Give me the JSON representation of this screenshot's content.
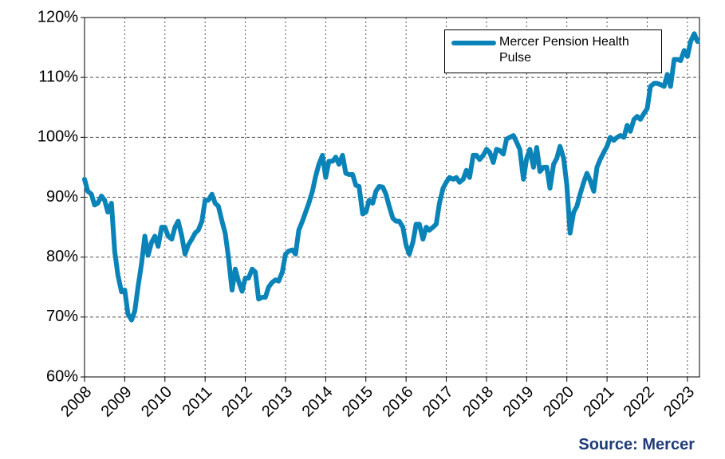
{
  "chart_data": {
    "type": "line",
    "source": "Source: Mercer",
    "xlim": [
      2008,
      2023.3
    ],
    "xticks": [
      2008,
      2009,
      2010,
      2011,
      2012,
      2013,
      2014,
      2015,
      2016,
      2017,
      2018,
      2019,
      2020,
      2021,
      2022,
      2023
    ],
    "ylim": [
      60,
      120
    ],
    "yticks": [
      {
        "value": 60,
        "label": "60%"
      },
      {
        "value": 70,
        "label": "70%"
      },
      {
        "value": 80,
        "label": "80%"
      },
      {
        "value": 90,
        "label": "90%"
      },
      {
        "value": 100,
        "label": "100%"
      },
      {
        "value": 110,
        "label": "110%"
      },
      {
        "value": 120,
        "label": "120%"
      }
    ],
    "grid": true,
    "legend": "upper right",
    "x": [
      2008.0,
      2008.08,
      2008.17,
      2008.25,
      2008.33,
      2008.42,
      2008.5,
      2008.58,
      2008.67,
      2008.75,
      2008.83,
      2008.92,
      2009.0,
      2009.08,
      2009.17,
      2009.25,
      2009.33,
      2009.42,
      2009.5,
      2009.58,
      2009.67,
      2009.75,
      2009.83,
      2009.92,
      2010.0,
      2010.08,
      2010.17,
      2010.25,
      2010.33,
      2010.42,
      2010.5,
      2010.58,
      2010.67,
      2010.75,
      2010.83,
      2010.92,
      2011.0,
      2011.08,
      2011.17,
      2011.25,
      2011.33,
      2011.42,
      2011.5,
      2011.58,
      2011.67,
      2011.75,
      2011.83,
      2011.92,
      2012.0,
      2012.08,
      2012.17,
      2012.25,
      2012.33,
      2012.42,
      2012.5,
      2012.58,
      2012.67,
      2012.75,
      2012.83,
      2012.92,
      2013.0,
      2013.08,
      2013.17,
      2013.25,
      2013.33,
      2013.42,
      2013.5,
      2013.58,
      2013.67,
      2013.75,
      2013.83,
      2013.92,
      2014.0,
      2014.08,
      2014.17,
      2014.25,
      2014.33,
      2014.42,
      2014.5,
      2014.58,
      2014.67,
      2014.75,
      2014.83,
      2014.92,
      2015.0,
      2015.08,
      2015.17,
      2015.25,
      2015.33,
      2015.42,
      2015.5,
      2015.58,
      2015.67,
      2015.75,
      2015.83,
      2015.92,
      2016.0,
      2016.08,
      2016.17,
      2016.25,
      2016.33,
      2016.42,
      2016.5,
      2016.58,
      2016.67,
      2016.75,
      2016.83,
      2016.92,
      2017.0,
      2017.08,
      2017.17,
      2017.25,
      2017.33,
      2017.42,
      2017.5,
      2017.58,
      2017.67,
      2017.75,
      2017.83,
      2017.92,
      2018.0,
      2018.08,
      2018.17,
      2018.25,
      2018.33,
      2018.42,
      2018.5,
      2018.58,
      2018.67,
      2018.75,
      2018.83,
      2018.92,
      2019.0,
      2019.08,
      2019.17,
      2019.25,
      2019.33,
      2019.42,
      2019.5,
      2019.58,
      2019.67,
      2019.75,
      2019.83,
      2019.92,
      2020.0,
      2020.08,
      2020.17,
      2020.25,
      2020.33,
      2020.42,
      2020.5,
      2020.58,
      2020.67,
      2020.75,
      2020.83,
      2020.92,
      2021.0,
      2021.08,
      2021.17,
      2021.25,
      2021.33,
      2021.42,
      2021.5,
      2021.58,
      2021.67,
      2021.75,
      2021.83,
      2021.92,
      2022.0,
      2022.08,
      2022.17,
      2022.25,
      2022.33,
      2022.42,
      2022.5,
      2022.58,
      2022.67,
      2022.75,
      2022.83,
      2022.92,
      2023.0,
      2023.08,
      2023.17,
      2023.25
    ],
    "series": [
      {
        "name": "Mercer Pension Health Pulse",
        "color": "#0a84b8",
        "values": [
          93,
          91,
          90.5,
          88.7,
          89,
          90.2,
          89.5,
          87.5,
          89,
          81,
          77,
          74.2,
          74.5,
          70.5,
          69.5,
          71,
          75,
          79,
          83.5,
          80.3,
          82.5,
          83.5,
          81.8,
          85,
          85,
          83.5,
          83,
          85,
          86,
          83.5,
          80.5,
          82,
          83,
          84,
          84.5,
          86,
          89.5,
          89.5,
          90.5,
          89,
          88.5,
          86,
          84,
          80,
          74.5,
          78,
          76,
          74.3,
          76.5,
          76.5,
          78,
          77.5,
          73,
          73.3,
          73.3,
          75,
          75.8,
          76.2,
          76,
          77.5,
          80.5,
          81,
          81.2,
          80.5,
          84.5,
          86,
          87.5,
          89,
          91,
          93.5,
          95.5,
          97,
          93.3,
          96,
          96,
          96.7,
          95.5,
          97,
          94,
          93.8,
          93.8,
          92,
          91.8,
          87.2,
          87.5,
          89.5,
          89,
          91,
          91.8,
          91.7,
          90.5,
          88.5,
          86.5,
          86,
          86,
          85,
          82,
          80.5,
          82.5,
          85.5,
          85.5,
          83,
          85,
          84.5,
          85,
          85.5,
          89,
          91.5,
          92.5,
          93.3,
          93,
          93.3,
          92.5,
          93,
          94.5,
          93.3,
          97,
          97,
          96.3,
          97,
          98,
          97.5,
          95.8,
          98,
          97.8,
          97.2,
          99.7,
          100,
          100.3,
          99.2,
          98,
          93,
          96.5,
          98,
          95,
          98.3,
          94.3,
          95,
          95,
          91.5,
          95.5,
          96.5,
          98.5,
          96.5,
          92,
          84,
          87.5,
          88.5,
          90.5,
          92.5,
          94,
          92.8,
          91,
          95,
          96.3,
          97.5,
          98.5,
          100,
          99.5,
          100,
          100.3,
          100,
          102,
          101,
          103,
          103.5,
          103,
          104,
          104.8,
          108.5,
          109,
          109,
          108.8,
          108.5,
          110.5,
          108.5,
          113,
          113,
          112.8,
          114.5,
          113.5,
          116,
          117.3,
          116
        ]
      }
    ]
  }
}
